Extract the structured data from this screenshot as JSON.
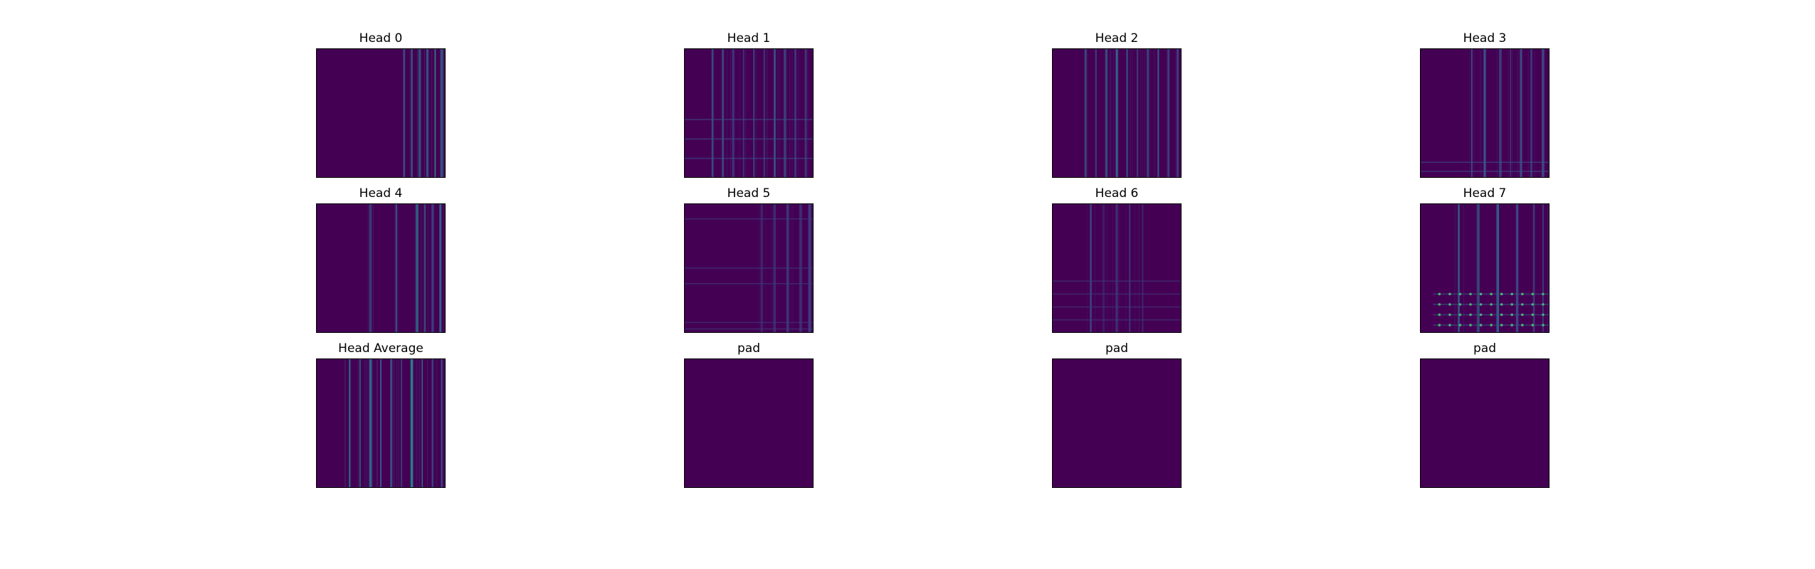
{
  "chart_data": {
    "type": "heatmap",
    "layout": {
      "rows": 3,
      "cols": 4
    },
    "colormap": "viridis",
    "background_color": "#440154",
    "frame_color": "#000000",
    "panels": [
      {
        "title": "Head 0",
        "pattern": "vertical-stripes",
        "stripe_columns": [
          0.68,
          0.74,
          0.8,
          0.86,
          0.92,
          0.97
        ],
        "row_highlights": [],
        "peak_intensity": 0.55
      },
      {
        "title": "Head 1",
        "pattern": "grid-stripes",
        "stripe_columns": [
          0.22,
          0.3,
          0.38,
          0.46,
          0.54,
          0.62,
          0.7,
          0.78,
          0.86,
          0.94
        ],
        "row_highlights": [
          0.55,
          0.7,
          0.85
        ],
        "peak_intensity": 0.35
      },
      {
        "title": "Head 2",
        "pattern": "vertical-stripes",
        "stripe_columns": [
          0.26,
          0.34,
          0.42,
          0.5,
          0.58,
          0.66,
          0.74,
          0.82,
          0.9,
          0.97
        ],
        "row_highlights": [],
        "peak_intensity": 0.4
      },
      {
        "title": "Head 3",
        "pattern": "vertical-stripes",
        "stripe_columns": [
          0.4,
          0.5,
          0.62,
          0.7,
          0.78,
          0.86,
          0.95
        ],
        "row_highlights": [
          0.88,
          0.95
        ],
        "peak_intensity": 0.35
      },
      {
        "title": "Head 4",
        "pattern": "vertical-stripes",
        "stripe_columns": [
          0.42,
          0.62,
          0.78,
          0.84,
          0.9,
          0.96
        ],
        "row_highlights": [],
        "peak_intensity": 0.45
      },
      {
        "title": "Head 5",
        "pattern": "faint-grid",
        "stripe_columns": [
          0.6,
          0.7,
          0.8,
          0.9,
          0.97
        ],
        "row_highlights": [
          0.12,
          0.5,
          0.62,
          0.92,
          0.97
        ],
        "peak_intensity": 0.25
      },
      {
        "title": "Head 6",
        "pattern": "grid-stripes",
        "stripe_columns": [
          0.3,
          0.4,
          0.5,
          0.6,
          0.7
        ],
        "row_highlights": [
          0.6,
          0.7,
          0.8,
          0.9
        ],
        "peak_intensity": 0.25
      },
      {
        "title": "Head 7",
        "pattern": "dotted-grid",
        "stripe_columns": [
          0.3,
          0.45,
          0.6,
          0.75,
          0.88,
          0.95
        ],
        "row_highlights": [
          0.7,
          0.78,
          0.86,
          0.94
        ],
        "peak_intensity": 0.4
      },
      {
        "title": "Head Average",
        "pattern": "vertical-stripes",
        "stripe_columns": [
          0.26,
          0.34,
          0.42,
          0.5,
          0.58,
          0.66,
          0.74,
          0.82,
          0.9,
          0.97
        ],
        "row_highlights": [],
        "peak_intensity": 0.5
      },
      {
        "title": "pad",
        "pattern": "uniform",
        "stripe_columns": [],
        "row_highlights": [],
        "peak_intensity": 0
      },
      {
        "title": "pad",
        "pattern": "uniform",
        "stripe_columns": [],
        "row_highlights": [],
        "peak_intensity": 0
      },
      {
        "title": "pad",
        "pattern": "uniform",
        "stripe_columns": [],
        "row_highlights": [],
        "peak_intensity": 0
      }
    ]
  }
}
